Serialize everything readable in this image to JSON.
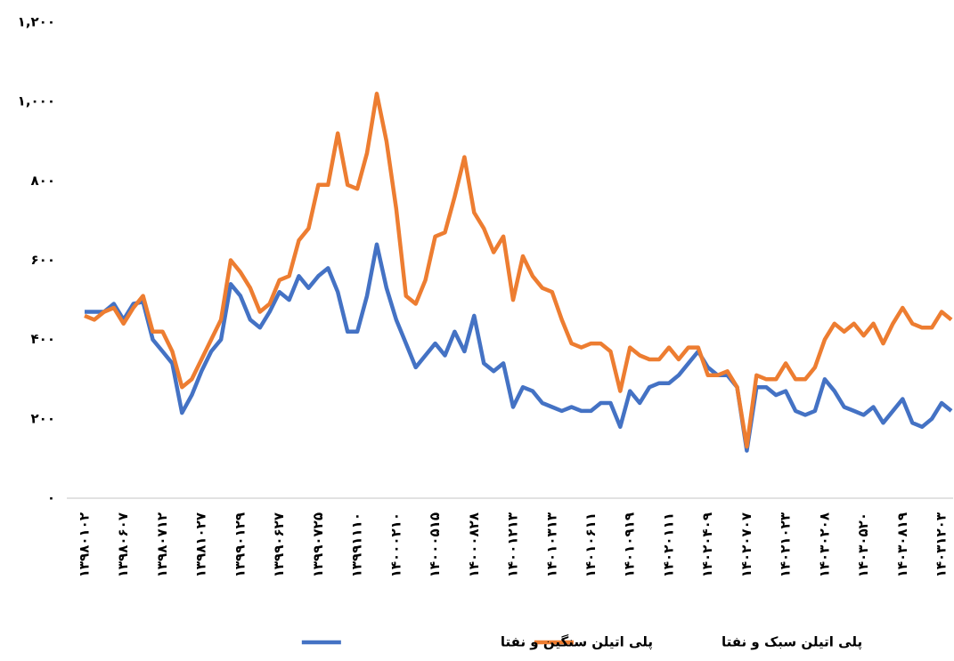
{
  "chart_data": {
    "type": "line",
    "categories": [
      "۱۳۹۸۰۱۰۲",
      null,
      null,
      null,
      "۱۳۹۸۰۶۰۷",
      null,
      null,
      null,
      "۱۳۹۸۰۷۱۲",
      null,
      null,
      null,
      "۱۳۹۸۱۰۲۷",
      null,
      null,
      null,
      "۱۳۹۹۰۱۲۹",
      null,
      null,
      null,
      "۱۳۹۹۰۶۲۷",
      null,
      null,
      null,
      "۱۳۹۹۰۷۲۵",
      null,
      null,
      null,
      "۱۳۹۹۱۱۱۰",
      null,
      null,
      null,
      "۱۴۰۰۰۲۱۰",
      null,
      null,
      null,
      "۱۴۰۰۰۵۱۵",
      null,
      null,
      null,
      "۱۴۰۰۰۸۲۸",
      null,
      null,
      null,
      "۱۴۰۰۱۲۱۳",
      null,
      null,
      null,
      "۱۴۰۱۰۳۱۳",
      null,
      null,
      null,
      "۱۴۰۱۰۶۱۱",
      null,
      null,
      null,
      "۱۴۰۱۰۹۱۹",
      null,
      null,
      null,
      "۱۴۰۲۰۱۱۱",
      null,
      null,
      null,
      "۱۴۰۲۰۴۰۹",
      null,
      null,
      null,
      "۱۴۰۲۰۷۰۷",
      null,
      null,
      null,
      "۱۴۰۲۱۰۲۳",
      null,
      null,
      null,
      "۱۴۰۳۰۲۰۸",
      null,
      null,
      null,
      "۱۴۰۳۰۵۲۰",
      null,
      null,
      null,
      "۱۴۰۳۰۸۱۹",
      null,
      null,
      null,
      "۱۴۰۳۱۲۰۳",
      null
    ],
    "series": [
      {
        "name": "پلی اتیلن سبک و نفتا",
        "color": "#ed7d31",
        "values": [
          460,
          450,
          470,
          480,
          440,
          480,
          510,
          420,
          420,
          370,
          280,
          300,
          350,
          400,
          450,
          600,
          570,
          530,
          470,
          490,
          550,
          560,
          650,
          680,
          790,
          790,
          920,
          790,
          780,
          870,
          1020,
          900,
          730,
          510,
          490,
          550,
          660,
          670,
          760,
          860,
          720,
          680,
          620,
          660,
          500,
          610,
          560,
          530,
          520,
          450,
          390,
          380,
          390,
          390,
          370,
          270,
          380,
          360,
          350,
          350,
          380,
          350,
          380,
          380,
          310,
          310,
          320,
          280,
          130,
          310,
          300,
          300,
          340,
          300,
          300,
          330,
          400,
          440,
          420,
          440,
          410,
          440,
          390,
          440,
          480,
          440,
          430,
          430,
          470,
          450
        ]
      },
      {
        "name": "پلی اتیلن سنگین و نفتا",
        "color": "#4472c4",
        "values": [
          470,
          470,
          470,
          490,
          450,
          490,
          495,
          400,
          370,
          340,
          215,
          260,
          320,
          370,
          400,
          540,
          510,
          450,
          430,
          470,
          520,
          500,
          560,
          530,
          560,
          580,
          520,
          420,
          420,
          510,
          640,
          530,
          450,
          390,
          330,
          360,
          390,
          360,
          420,
          370,
          460,
          340,
          320,
          340,
          230,
          280,
          270,
          240,
          230,
          220,
          230,
          220,
          220,
          240,
          240,
          180,
          270,
          240,
          280,
          290,
          290,
          310,
          340,
          370,
          330,
          310,
          310,
          280,
          120,
          280,
          280,
          260,
          270,
          220,
          210,
          220,
          300,
          270,
          230,
          220,
          210,
          230,
          190,
          220,
          250,
          190,
          180,
          200,
          240,
          220
        ]
      }
    ],
    "ylim": [
      0,
      1200
    ],
    "yticks": [
      {
        "value": 0,
        "label": "۰"
      },
      {
        "value": 200,
        "label": "۲۰۰"
      },
      {
        "value": 400,
        "label": "۴۰۰"
      },
      {
        "value": 600,
        "label": "۶۰۰"
      },
      {
        "value": 800,
        "label": "۸۰۰"
      },
      {
        "value": 1000,
        "label": "۱,۰۰۰"
      },
      {
        "value": 1200,
        "label": "۱,۲۰۰"
      }
    ],
    "grid": false,
    "legend": "bottom"
  }
}
